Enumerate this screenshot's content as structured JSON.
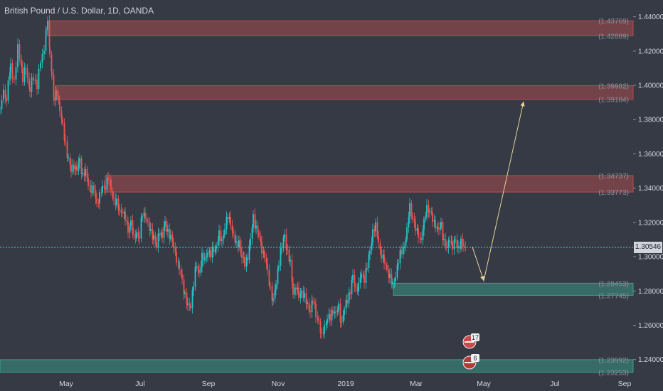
{
  "header": {
    "symbol_title": "British Pound / U.S. Dollar, 1D, OANDA"
  },
  "colors": {
    "background": "#363a45",
    "bull": "#22c7c7",
    "bear": "#ef5350",
    "supply_zone": "#c0504d",
    "demand_zone": "#3aa891",
    "arrow": "#e6d49a",
    "price_line": "#5ec8e6",
    "axis_text": "#d1d4dc"
  },
  "chart_data": {
    "type": "candlestick",
    "title": "British Pound / U.S. Dollar, 1D, OANDA",
    "y_axis": {
      "ylim": [
        1.232,
        1.4415
      ],
      "tick_labels": [
        "1.44000",
        "1.42000",
        "1.40000",
        "1.38000",
        "1.36000",
        "1.34000",
        "1.32000",
        "1.30000",
        "1.28000",
        "1.26000",
        "1.24000"
      ],
      "position": "right"
    },
    "x_axis": {
      "tick_labels": [
        "May",
        "Jul",
        "Sep",
        "Nov",
        "2019",
        "Mar",
        "May",
        "Jul",
        "Sep"
      ]
    },
    "current_price": "1.30546",
    "zones": [
      {
        "type": "supply",
        "upper": "1.43769",
        "lower": "1.42889",
        "top": 1.43769,
        "bottom": 1.42889
      },
      {
        "type": "supply",
        "upper": "1.39982",
        "lower": "1.39184",
        "top": 1.39982,
        "bottom": 1.39184
      },
      {
        "type": "supply",
        "upper": "1.34737",
        "lower": "1.33773",
        "top": 1.34737,
        "bottom": 1.33773
      },
      {
        "type": "demand",
        "upper": "1.28453",
        "lower": "1.27745",
        "top": 1.28453,
        "bottom": 1.27745
      },
      {
        "type": "demand",
        "upper": "1.23992",
        "lower": "1.23253",
        "top": 1.23992,
        "bottom": 1.23253
      }
    ],
    "close_path": [
      [
        0,
        1.385
      ],
      [
        5,
        1.398
      ],
      [
        9,
        1.392
      ],
      [
        15,
        1.412
      ],
      [
        20,
        1.401
      ],
      [
        25,
        1.422
      ],
      [
        28,
        1.418
      ],
      [
        32,
        1.403
      ],
      [
        36,
        1.41
      ],
      [
        42,
        1.398
      ],
      [
        47,
        1.405
      ],
      [
        52,
        1.4
      ],
      [
        57,
        1.414
      ],
      [
        62,
        1.422
      ],
      [
        65,
        1.432
      ],
      [
        67,
        1.437
      ],
      [
        70,
        1.42
      ],
      [
        73,
        1.405
      ],
      [
        76,
        1.392
      ],
      [
        80,
        1.396
      ],
      [
        84,
        1.386
      ],
      [
        88,
        1.375
      ],
      [
        92,
        1.366
      ],
      [
        96,
        1.358
      ],
      [
        100,
        1.35
      ],
      [
        104,
        1.354
      ],
      [
        108,
        1.35
      ],
      [
        112,
        1.355
      ],
      [
        116,
        1.348
      ],
      [
        120,
        1.35
      ],
      [
        124,
        1.343
      ],
      [
        128,
        1.34
      ],
      [
        132,
        1.338
      ],
      [
        136,
        1.33
      ],
      [
        140,
        1.336
      ],
      [
        144,
        1.34
      ],
      [
        148,
        1.342
      ],
      [
        152,
        1.347
      ],
      [
        156,
        1.338
      ],
      [
        160,
        1.333
      ],
      [
        164,
        1.331
      ],
      [
        168,
        1.327
      ],
      [
        172,
        1.328
      ],
      [
        176,
        1.322
      ],
      [
        180,
        1.315
      ],
      [
        184,
        1.32
      ],
      [
        188,
        1.31
      ],
      [
        192,
        1.315
      ],
      [
        196,
        1.312
      ],
      [
        200,
        1.325
      ],
      [
        204,
        1.324
      ],
      [
        208,
        1.318
      ],
      [
        212,
        1.314
      ],
      [
        216,
        1.313
      ],
      [
        220,
        1.306
      ],
      [
        224,
        1.315
      ],
      [
        228,
        1.312
      ],
      [
        232,
        1.318
      ],
      [
        236,
        1.315
      ],
      [
        240,
        1.312
      ],
      [
        244,
        1.306
      ],
      [
        248,
        1.3
      ],
      [
        252,
        1.292
      ],
      [
        256,
        1.285
      ],
      [
        260,
        1.278
      ],
      [
        264,
        1.271
      ],
      [
        268,
        1.272
      ],
      [
        272,
        1.285
      ],
      [
        276,
        1.294
      ],
      [
        280,
        1.29
      ],
      [
        284,
        1.3
      ],
      [
        288,
        1.298
      ],
      [
        292,
        1.305
      ],
      [
        296,
        1.301
      ],
      [
        300,
        1.303
      ],
      [
        304,
        1.306
      ],
      [
        308,
        1.312
      ],
      [
        312,
        1.31
      ],
      [
        316,
        1.318
      ],
      [
        320,
        1.323
      ],
      [
        324,
        1.32
      ],
      [
        328,
        1.312
      ],
      [
        332,
        1.306
      ],
      [
        336,
        1.31
      ],
      [
        340,
        1.3
      ],
      [
        344,
        1.296
      ],
      [
        348,
        1.3
      ],
      [
        352,
        1.308
      ],
      [
        356,
        1.323
      ],
      [
        360,
        1.318
      ],
      [
        364,
        1.312
      ],
      [
        368,
        1.305
      ],
      [
        372,
        1.3
      ],
      [
        376,
        1.29
      ],
      [
        380,
        1.282
      ],
      [
        384,
        1.274
      ],
      [
        388,
        1.285
      ],
      [
        392,
        1.298
      ],
      [
        396,
        1.305
      ],
      [
        400,
        1.312
      ],
      [
        404,
        1.303
      ],
      [
        408,
        1.296
      ],
      [
        412,
        1.28
      ],
      [
        416,
        1.283
      ],
      [
        420,
        1.276
      ],
      [
        424,
        1.28
      ],
      [
        428,
        1.276
      ],
      [
        432,
        1.272
      ],
      [
        436,
        1.27
      ],
      [
        440,
        1.275
      ],
      [
        444,
        1.266
      ],
      [
        448,
        1.262
      ],
      [
        452,
        1.252
      ],
      [
        456,
        1.26
      ],
      [
        460,
        1.265
      ],
      [
        464,
        1.264
      ],
      [
        468,
        1.269
      ],
      [
        472,
        1.266
      ],
      [
        476,
        1.27
      ],
      [
        480,
        1.262
      ],
      [
        484,
        1.27
      ],
      [
        488,
        1.275
      ],
      [
        492,
        1.28
      ],
      [
        496,
        1.287
      ],
      [
        500,
        1.281
      ],
      [
        504,
        1.284
      ],
      [
        508,
        1.29
      ],
      [
        512,
        1.288
      ],
      [
        516,
        1.294
      ],
      [
        520,
        1.302
      ],
      [
        524,
        1.315
      ],
      [
        528,
        1.318
      ],
      [
        532,
        1.309
      ],
      [
        536,
        1.302
      ],
      [
        540,
        1.296
      ],
      [
        544,
        1.292
      ],
      [
        548,
        1.288
      ],
      [
        552,
        1.283
      ],
      [
        556,
        1.29
      ],
      [
        560,
        1.298
      ],
      [
        564,
        1.302
      ],
      [
        568,
        1.306
      ],
      [
        572,
        1.314
      ],
      [
        576,
        1.33
      ],
      [
        580,
        1.324
      ],
      [
        584,
        1.316
      ],
      [
        588,
        1.313
      ],
      [
        592,
        1.309
      ],
      [
        596,
        1.319
      ],
      [
        600,
        1.33
      ],
      [
        604,
        1.327
      ],
      [
        608,
        1.322
      ],
      [
        612,
        1.319
      ],
      [
        616,
        1.314
      ],
      [
        620,
        1.318
      ],
      [
        624,
        1.31
      ],
      [
        628,
        1.305
      ],
      [
        632,
        1.311
      ],
      [
        636,
        1.306
      ],
      [
        640,
        1.308
      ],
      [
        644,
        1.305
      ],
      [
        648,
        1.309
      ],
      [
        652,
        1.306
      ],
      [
        655,
        1.3055
      ]
    ],
    "forecast_arrow": {
      "points": [
        [
          664,
          1.3057
        ],
        [
          680,
          1.286
        ],
        [
          736,
          1.3905
        ]
      ]
    },
    "events": [
      {
        "flag": "uk",
        "label": "17"
      },
      {
        "flag": "us",
        "label": "6"
      }
    ]
  }
}
